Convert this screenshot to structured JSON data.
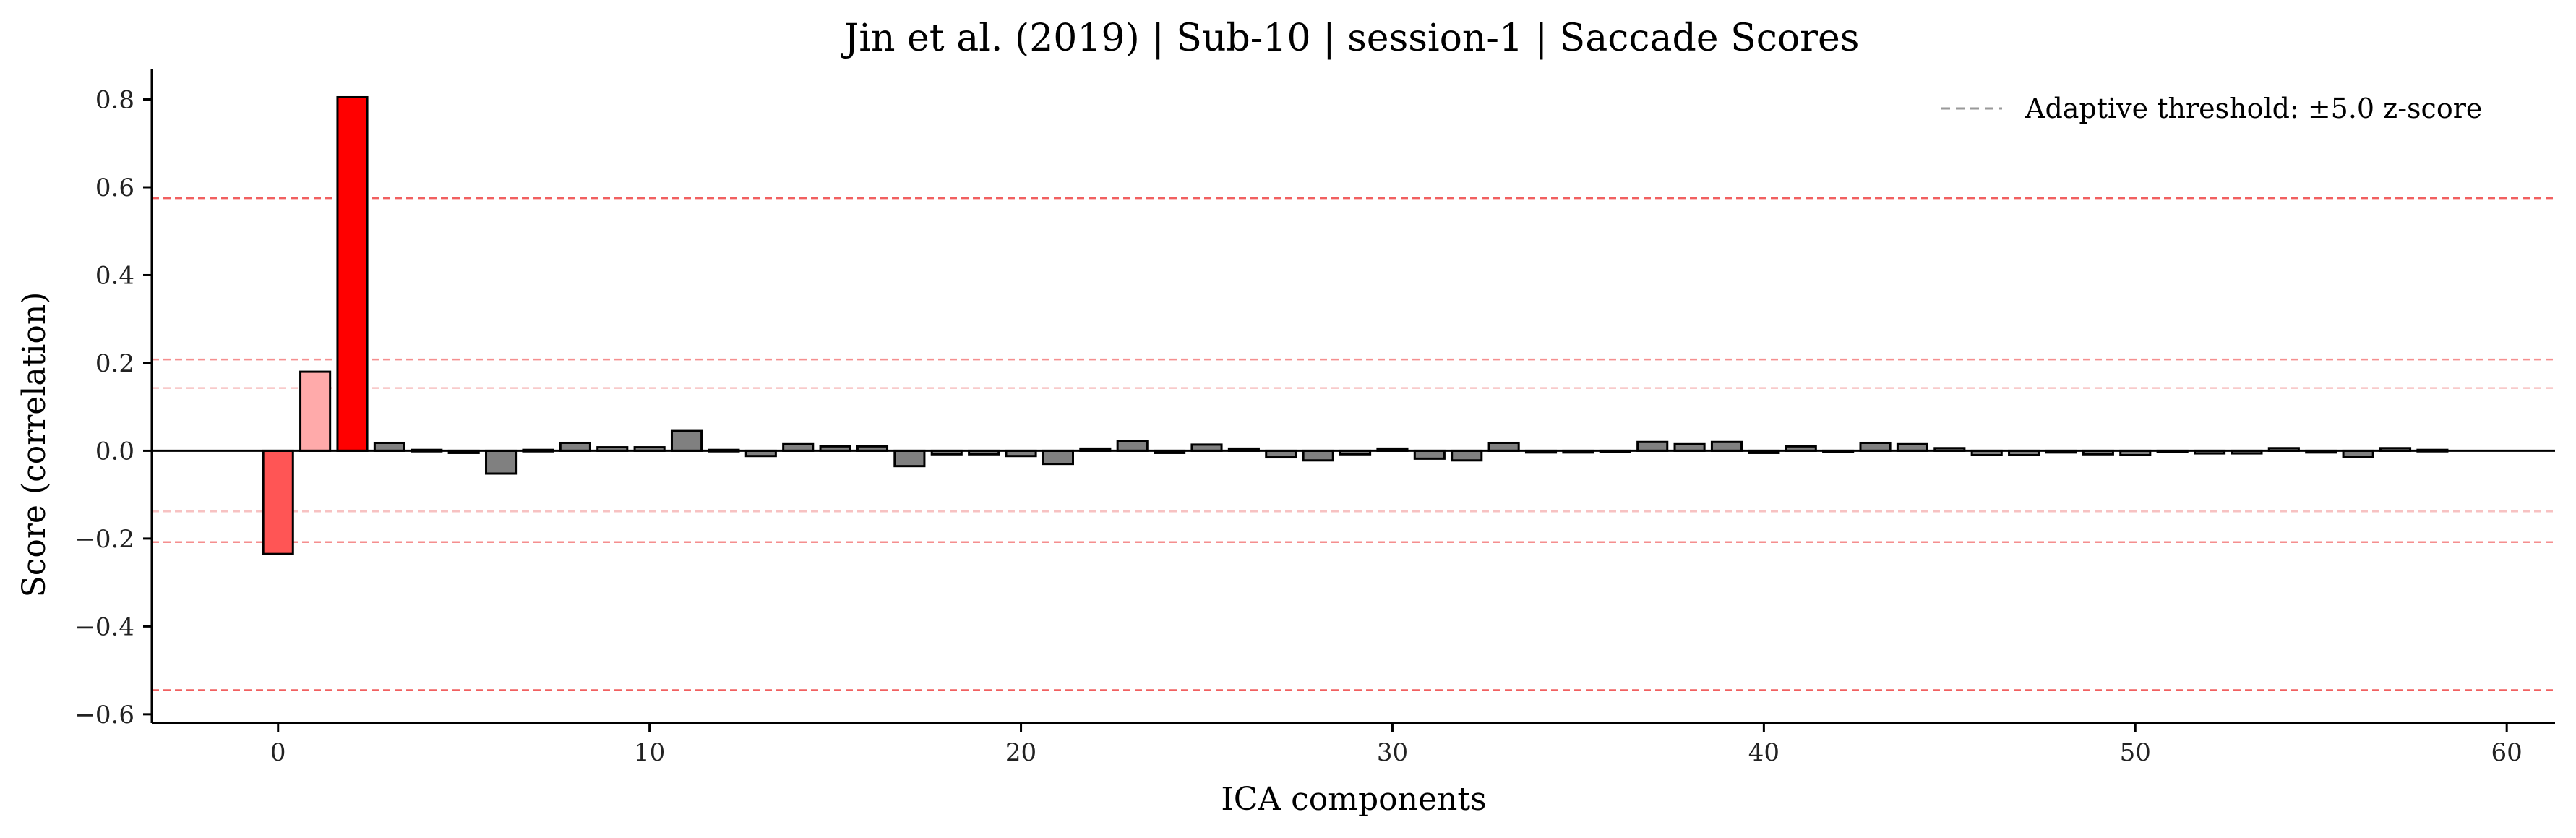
{
  "chart_data": {
    "type": "bar",
    "title": "Jin et al. (2019) | Sub-10 | session-1 | Saccade Scores",
    "xlabel": "ICA components",
    "ylabel": "Score (correlation)",
    "xlim": [
      -3.4,
      61.3
    ],
    "ylim": [
      -0.62,
      0.87
    ],
    "xticks": [
      0,
      10,
      20,
      30,
      40,
      50,
      60
    ],
    "yticks": [
      -0.6,
      -0.4,
      -0.2,
      0.0,
      0.2,
      0.4,
      0.6,
      0.8
    ],
    "ytick_labels": [
      "−0.6",
      "−0.4",
      "−0.2",
      "0.0",
      "0.2",
      "0.4",
      "0.6",
      "0.8"
    ],
    "grid": false,
    "legend": {
      "placement": "top-right",
      "entries": [
        {
          "label": "Adaptive threshold: ±5.0 z-score",
          "style": "dashed",
          "color": "#999999"
        }
      ]
    },
    "x": [
      0,
      1,
      2,
      3,
      4,
      5,
      6,
      7,
      8,
      9,
      10,
      11,
      12,
      13,
      14,
      15,
      16,
      17,
      18,
      19,
      20,
      21,
      22,
      23,
      24,
      25,
      26,
      27,
      28,
      29,
      30,
      31,
      32,
      33,
      34,
      35,
      36,
      37,
      38,
      39,
      40,
      41,
      42,
      43,
      44,
      45,
      46,
      47,
      48,
      49,
      50,
      51,
      52,
      53,
      54,
      55,
      56,
      57,
      58
    ],
    "values": [
      -0.235,
      0.18,
      0.805,
      0.018,
      0.002,
      -0.005,
      -0.052,
      0.002,
      0.018,
      0.008,
      0.008,
      0.045,
      0.002,
      -0.012,
      0.015,
      0.01,
      0.01,
      -0.035,
      -0.008,
      -0.008,
      -0.012,
      -0.03,
      0.005,
      0.022,
      -0.005,
      0.014,
      0.005,
      -0.015,
      -0.022,
      -0.008,
      0.005,
      -0.018,
      -0.022,
      0.018,
      -0.004,
      -0.004,
      -0.002,
      0.02,
      0.015,
      0.02,
      -0.005,
      0.01,
      -0.002,
      0.018,
      0.015,
      0.006,
      -0.01,
      -0.01,
      -0.004,
      -0.008,
      -0.01,
      -0.002,
      -0.006,
      -0.006,
      0.006,
      -0.004,
      -0.014,
      0.006,
      0.002
    ],
    "bar_colors": [
      "#ff5555",
      "#ffaaaa",
      "#ff0000"
    ],
    "default_bar_color": "#808080",
    "threshold_lines": [
      {
        "y": 0.575,
        "color": "#ee4444",
        "opacity": 0.85
      },
      {
        "y": -0.545,
        "color": "#ee4444",
        "opacity": 0.85
      },
      {
        "y": 0.208,
        "color": "#ee4444",
        "opacity": 0.6
      },
      {
        "y": -0.208,
        "color": "#ee4444",
        "opacity": 0.6
      },
      {
        "y": 0.143,
        "color": "#f09090",
        "opacity": 0.55
      },
      {
        "y": -0.138,
        "color": "#f09090",
        "opacity": 0.55
      }
    ]
  }
}
